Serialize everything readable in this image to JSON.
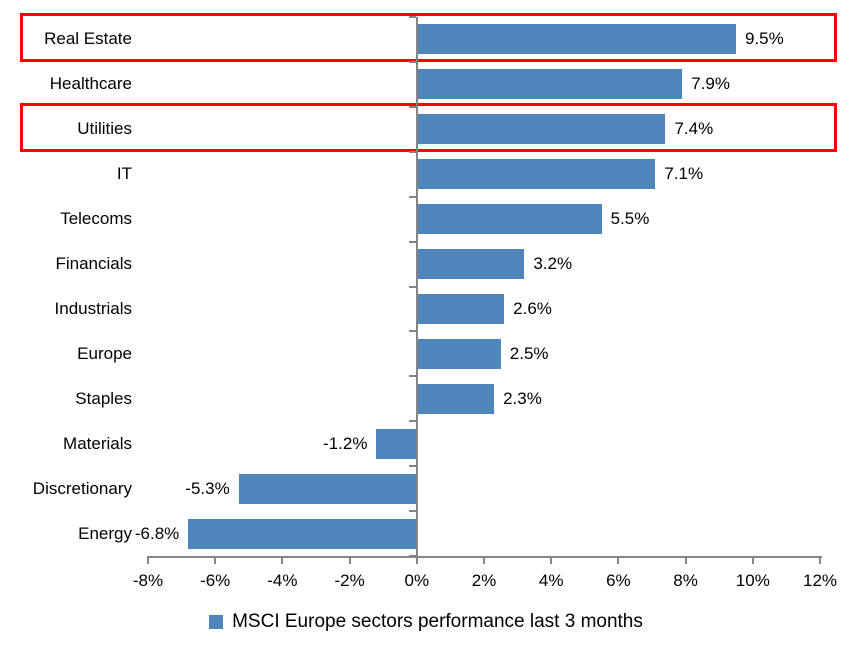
{
  "chart_data": {
    "type": "bar",
    "orientation": "horizontal",
    "title": "",
    "categories": [
      "Real Estate",
      "Healthcare",
      "Utilities",
      "IT",
      "Telecoms",
      "Financials",
      "Industrials",
      "Europe",
      "Staples",
      "Materials",
      "Discretionary",
      "Energy"
    ],
    "values": [
      9.5,
      7.9,
      7.4,
      7.1,
      5.5,
      3.2,
      2.6,
      2.5,
      2.3,
      -1.2,
      -5.3,
      -6.8
    ],
    "value_labels": [
      "9.5%",
      "7.9%",
      "7.4%",
      "7.1%",
      "5.5%",
      "3.2%",
      "2.6%",
      "2.5%",
      "2.3%",
      "-1.2%",
      "-5.3%",
      "-6.8%"
    ],
    "xlim": [
      -8,
      12
    ],
    "x_tick_values": [
      -8,
      -6,
      -4,
      -2,
      0,
      2,
      4,
      6,
      8,
      10,
      12
    ],
    "x_tick_labels": [
      "-8%",
      "-6%",
      "-4%",
      "-2%",
      "0%",
      "2%",
      "4%",
      "6%",
      "8%",
      "10%",
      "12%"
    ],
    "grid": false,
    "legend": {
      "label": "MSCI Europe sectors performance last 3 months",
      "position": "bottom"
    },
    "highlighted_categories": [
      "Real Estate",
      "Utilities"
    ],
    "colors": {
      "bar": "#4E86BC",
      "axis": "#848484",
      "highlight_box": "#FF0000",
      "text": "#000000",
      "background": "#FFFFFF"
    }
  }
}
